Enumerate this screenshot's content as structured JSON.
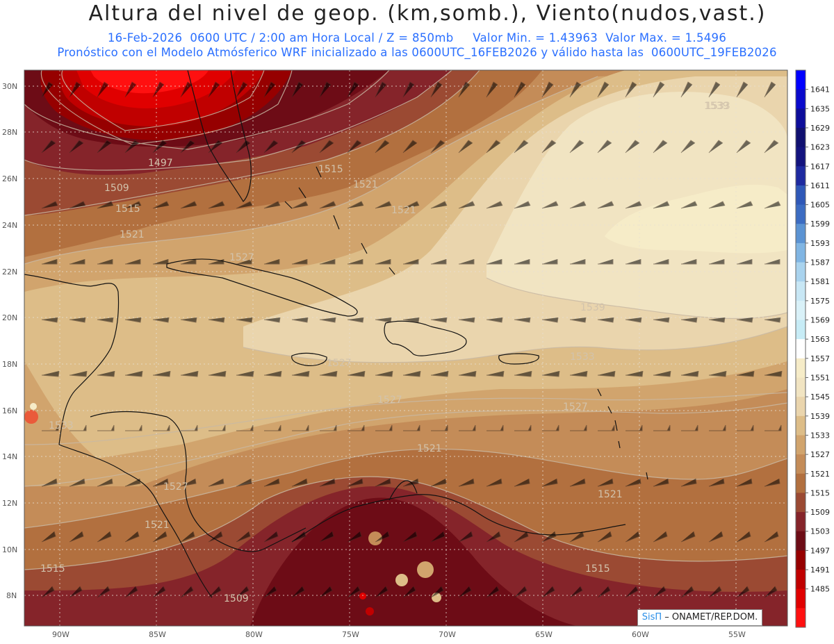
{
  "title": "Altura del nivel de geop. (km,somb.), Viento(nudos,vast.)",
  "subtitle_line1": "16-Feb-2026  0600 UTC / 2:00 am Hora Local / Z = 850mb     Valor Min. = 1.43963  Valor Max. = 1.5496",
  "subtitle_line2": "Pronóstico con el Modelo Atmósferico WRF inicializado a las 0600UTC_16FEB2026 y válido hasta las  0600UTC_19FEB2026",
  "credit": {
    "brand": "SisΠ",
    "rest": " – ONAMET/REP.DOM."
  },
  "map": {
    "lon_labels": [
      "90W",
      "85W",
      "80W",
      "75W",
      "70W",
      "65W",
      "60W",
      "55W"
    ],
    "lat_labels": [
      "30N",
      "28N",
      "26N",
      "24N",
      "22N",
      "20N",
      "18N",
      "16N",
      "14N",
      "12N",
      "10N",
      "8N"
    ],
    "contour_labels": [
      "1497",
      "1509",
      "1515",
      "1515",
      "1521",
      "1521",
      "1521",
      "1527",
      "1527",
      "1533",
      "1539",
      "1539",
      "1533",
      "1527",
      "1527",
      "1521",
      "1521",
      "1515",
      "1509",
      "1515",
      "1527",
      "1533",
      "1521"
    ]
  },
  "colorbar": {
    "ticks": [
      "1641",
      "1635",
      "1629",
      "1623",
      "1617",
      "1611",
      "1605",
      "1599",
      "1593",
      "1587",
      "1581",
      "1575",
      "1569",
      "1563",
      "1557",
      "1551",
      "1545",
      "1539",
      "1533",
      "1527",
      "1521",
      "1515",
      "1509",
      "1503",
      "1497",
      "1491",
      "1485"
    ],
    "colors": [
      "#0000ff",
      "#0a0acc",
      "#0d0d9a",
      "#101070",
      "#13137e",
      "#1e2aa0",
      "#2f58b8",
      "#3c6cc2",
      "#5b93d3",
      "#80b5e3",
      "#a9d3ee",
      "#c8e7f5",
      "#d9f1f8",
      "#c7ecf6",
      "#ffffff",
      "#f6ecc8",
      "#f1e4c2",
      "#ead5ad",
      "#ddbd88",
      "#d1a46d",
      "#c48c58",
      "#b2703f",
      "#9b4a33",
      "#85242a",
      "#6d0c16",
      "#960000",
      "#c00000",
      "#e00000",
      "#ff1010"
    ]
  }
}
